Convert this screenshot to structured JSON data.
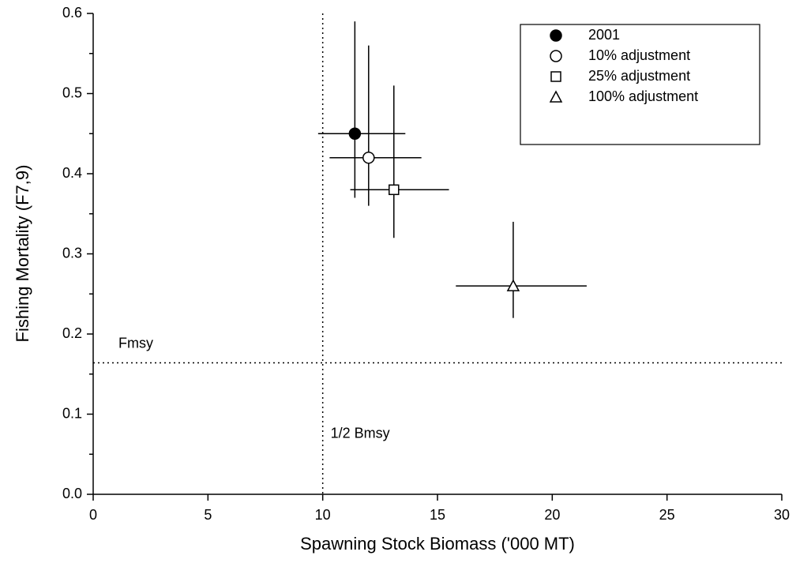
{
  "chart_data": {
    "type": "scatter",
    "x_label": "Spawning Stock Biomass ('000 MT)",
    "y_label": "Fishing Mortality (F7,9)",
    "xlim": [
      0,
      30
    ],
    "ylim": [
      0,
      0.6
    ],
    "xticks": [
      0,
      5,
      10,
      15,
      20,
      25,
      30
    ],
    "yticks": [
      {
        "value": 0,
        "label": "0.0"
      },
      0.1,
      0.2,
      0.3,
      0.4,
      0.5,
      0.6
    ],
    "yminorticks": [
      0.05,
      0.15,
      0.25,
      0.35,
      0.45,
      0.55
    ],
    "legend": "top-right",
    "series": [
      {
        "name": "2001",
        "marker": "circle",
        "filled": true,
        "color": "#000000",
        "x": [
          11.4
        ],
        "values": [
          0.45
        ],
        "x_low": [
          9.8
        ],
        "x_high": [
          13.6
        ],
        "y_low": [
          0.37
        ],
        "y_high": [
          0.59
        ]
      },
      {
        "name": "10% adjustment",
        "marker": "circle",
        "filled": false,
        "color": "#000000",
        "x": [
          12.0
        ],
        "values": [
          0.42
        ],
        "x_low": [
          10.3
        ],
        "x_high": [
          14.3
        ],
        "y_low": [
          0.36
        ],
        "y_high": [
          0.56
        ]
      },
      {
        "name": "25% adjustment",
        "marker": "square",
        "filled": false,
        "color": "#000000",
        "x": [
          13.1
        ],
        "values": [
          0.38
        ],
        "x_low": [
          11.2
        ],
        "x_high": [
          15.5
        ],
        "y_low": [
          0.32
        ],
        "y_high": [
          0.51
        ]
      },
      {
        "name": "100% adjustment",
        "marker": "triangle",
        "filled": false,
        "color": "#000000",
        "x": [
          18.3
        ],
        "values": [
          0.26
        ],
        "x_low": [
          15.8
        ],
        "x_high": [
          21.5
        ],
        "y_low": [
          0.22
        ],
        "y_high": [
          0.34
        ]
      }
    ],
    "reference_lines": [
      {
        "axis": "y",
        "value": 0.164,
        "label": "Fmsy"
      },
      {
        "axis": "x",
        "value": 10,
        "label": "1/2 Bmsy"
      }
    ]
  }
}
